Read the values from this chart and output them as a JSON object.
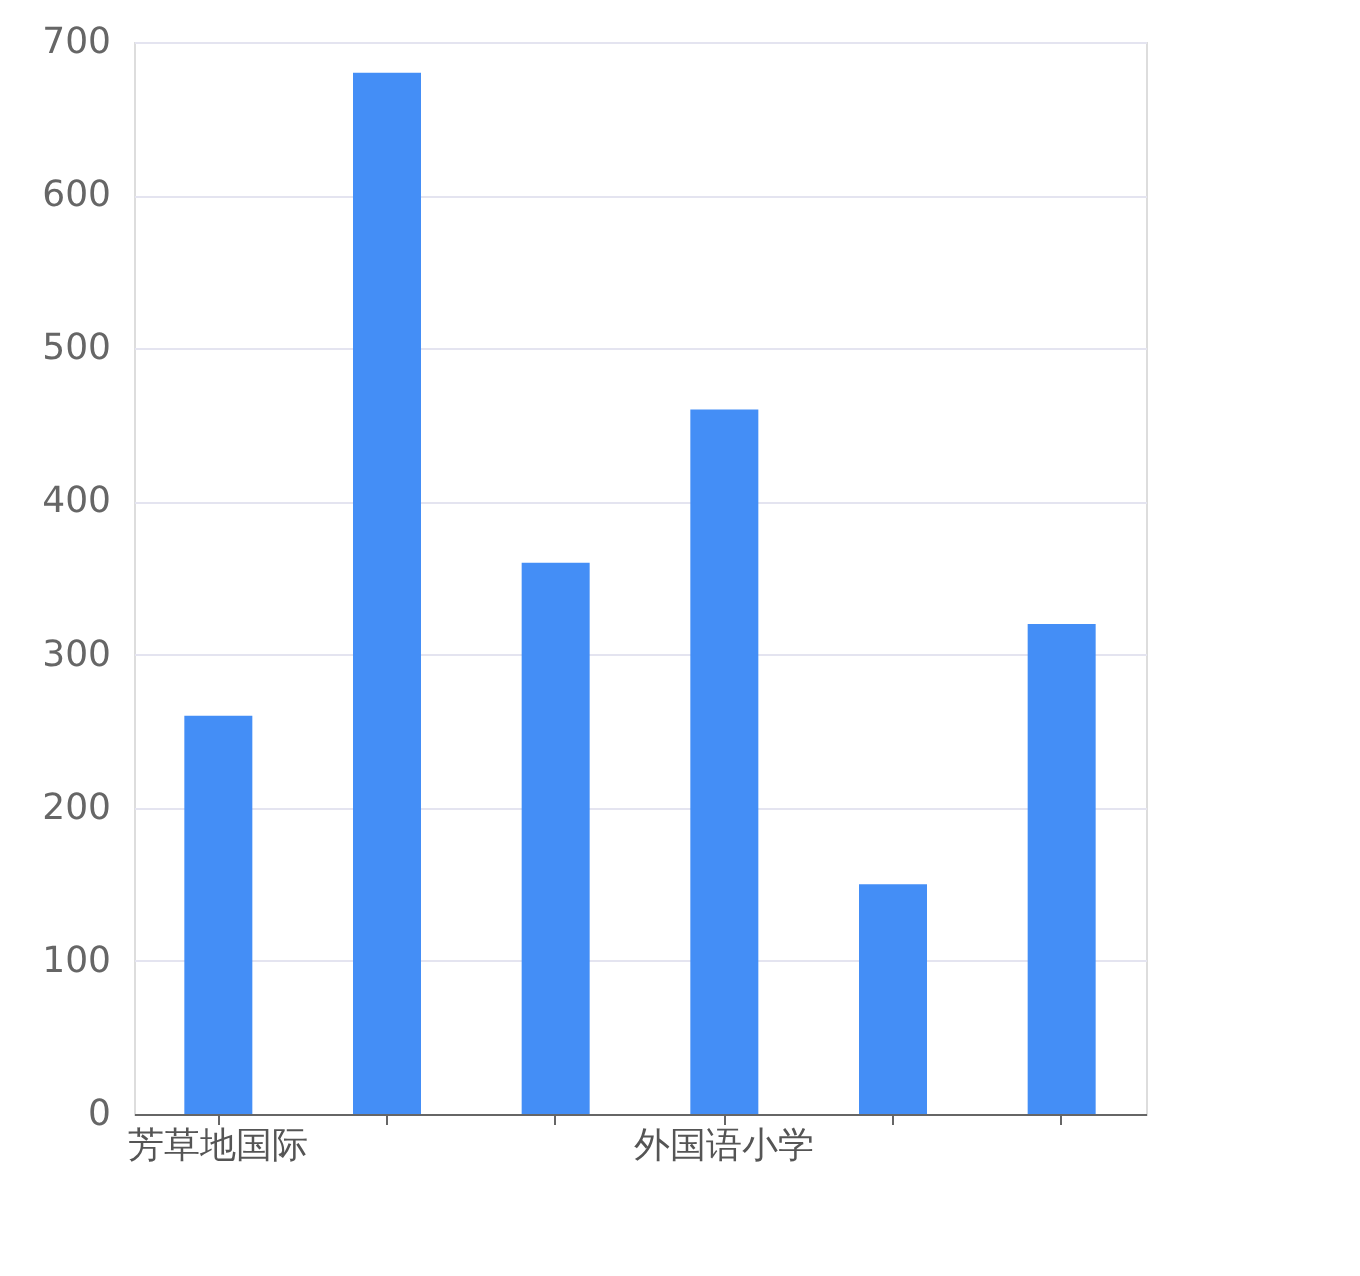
{
  "chart_data": {
    "type": "bar",
    "categories": [
      "芳草地国际",
      null,
      null,
      "外国语小学",
      null,
      null
    ],
    "values": [
      260,
      680,
      360,
      460,
      150,
      320
    ],
    "color": "#448ef6",
    "ylim": [
      0,
      700
    ],
    "yticks": [
      0,
      100,
      200,
      300,
      400,
      500,
      600,
      700
    ],
    "grid": "y"
  }
}
